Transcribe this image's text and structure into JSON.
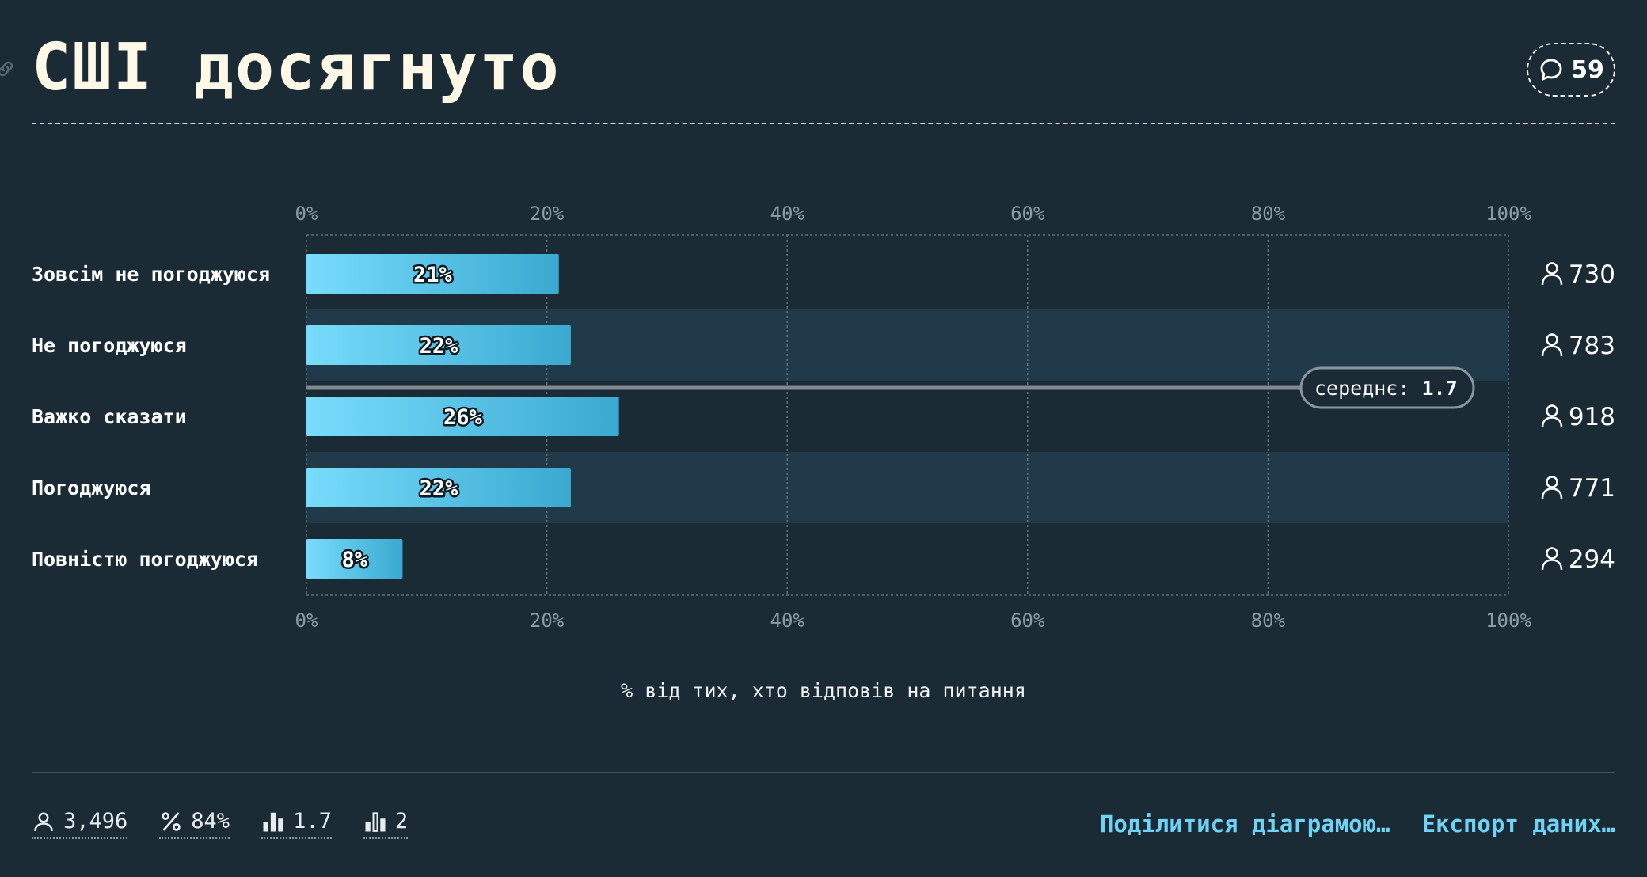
{
  "title": "СШІ досягнуто",
  "comments_count": "59",
  "stats": {
    "respondents": "3,496",
    "response_rate": "84%",
    "mean": "1.7",
    "median": "2"
  },
  "actions": {
    "share": "Поділитися діаграмою…",
    "export": "Експорт даних…"
  },
  "colors": {
    "background": "#1a2b35",
    "band": "#203a4a",
    "bar_light": "#78dcfc",
    "bar_dark": "#3aa9d0",
    "accent": "#6ed3f4"
  },
  "chart_data": {
    "type": "bar",
    "orientation": "horizontal",
    "categories": [
      "Зовсім не погоджуюся",
      "Не погоджуюся",
      "Важко сказати",
      "Погоджуюся",
      "Повністю погоджуюся"
    ],
    "values": [
      21,
      22,
      26,
      22,
      8
    ],
    "value_labels": [
      "21%",
      "22%",
      "26%",
      "22%",
      "8%"
    ],
    "counts": [
      "730",
      "783",
      "918",
      "771",
      "294"
    ],
    "xlim": [
      0,
      100
    ],
    "x_ticks": [
      "0%",
      "20%",
      "40%",
      "60%",
      "80%",
      "100%"
    ],
    "xlabel": "% від тих, хто відповів на питання",
    "mean_label": "середнє:",
    "mean_value": "1.7",
    "grid": true
  }
}
